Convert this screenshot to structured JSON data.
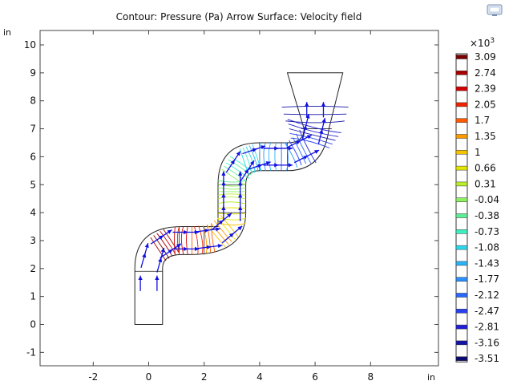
{
  "chart_data": {
    "type": "contour",
    "title": "Contour: Pressure (Pa)  Arrow Surface: Velocity field",
    "x_unit": "in",
    "y_unit": "in",
    "xlim": [
      -4,
      10.5
    ],
    "ylim": [
      -1.5,
      10.6
    ],
    "x_ticks": [
      "-2",
      "0",
      "2",
      "4",
      "6",
      "8"
    ],
    "y_ticks": [
      "-1",
      "0",
      "1",
      "2",
      "3",
      "4",
      "5",
      "6",
      "7",
      "8",
      "9",
      "10"
    ],
    "colorbar": {
      "multiplier": "×10",
      "exponent": "3",
      "levels": [
        "3.09",
        "2.74",
        "2.39",
        "2.05",
        "1.7",
        "1.35",
        "1",
        "0.66",
        "0.31",
        "-0.04",
        "-0.38",
        "-0.73",
        "-1.08",
        "-1.43",
        "-1.77",
        "-2.12",
        "-2.47",
        "-2.81",
        "-3.16",
        "-3.51"
      ],
      "colors": [
        "#7a0000",
        "#a80000",
        "#d20000",
        "#ee2200",
        "#ff5a00",
        "#ff9a00",
        "#f5c400",
        "#e6e600",
        "#b8ee2a",
        "#8ef060",
        "#5cf094",
        "#3cf0c0",
        "#2cd8ee",
        "#28b4f8",
        "#2890ff",
        "#2868ff",
        "#2840f0",
        "#2020d8",
        "#1414a8",
        "#0a0a70"
      ]
    },
    "grid": false,
    "legend": "right"
  },
  "icons": {
    "toolbar": "monitor-icon"
  }
}
